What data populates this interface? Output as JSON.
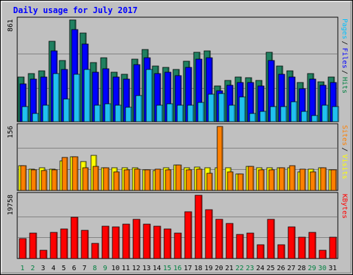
{
  "chart_data": {
    "type": "bar",
    "title": "Daily usage for July 2017",
    "categories": [
      "1",
      "2",
      "3",
      "4",
      "5",
      "6",
      "7",
      "8",
      "9",
      "10",
      "11",
      "12",
      "13",
      "14",
      "15",
      "16",
      "17",
      "18",
      "19",
      "20",
      "21",
      "22",
      "23",
      "24",
      "25",
      "26",
      "27",
      "28",
      "29",
      "30",
      "31"
    ],
    "weekend_days": [
      "1",
      "2",
      "8",
      "9",
      "15",
      "16",
      "22",
      "23",
      "29",
      "30"
    ],
    "panels": [
      {
        "id": "pages-files-hits",
        "max_label": "861",
        "ymax": 861,
        "legend": [
          "Pages",
          "Files",
          "Hits"
        ],
        "legend_colors": [
          "#00c0ff",
          "#0000ff",
          "#008040"
        ],
        "series": [
          {
            "name": "Hits",
            "color": "#208060",
            "values": [
              380,
              410,
              430,
              680,
              520,
              861,
              750,
              500,
              540,
              420,
              400,
              530,
              610,
              470,
              460,
              440,
              510,
              590,
              600,
              300,
              350,
              380,
              370,
              350,
              590,
              470,
              430,
              330,
              410,
              340,
              380
            ]
          },
          {
            "name": "Files",
            "color": "#0000ff",
            "values": [
              320,
              360,
              380,
              600,
              440,
              780,
              660,
              420,
              450,
              380,
              360,
              480,
              540,
              410,
              420,
              390,
              460,
              530,
              540,
              260,
              310,
              330,
              330,
              300,
              520,
              400,
              380,
              280,
              360,
              310,
              330
            ]
          },
          {
            "name": "Pages",
            "color": "#20c0f0",
            "values": [
              130,
              70,
              140,
              410,
              190,
              400,
              440,
              140,
              150,
              140,
              120,
              220,
              440,
              140,
              150,
              140,
              140,
              160,
              230,
              240,
              140,
              210,
              70,
              90,
              130,
              130,
              170,
              90,
              50,
              140,
              130
            ]
          }
        ]
      },
      {
        "id": "sites-visits",
        "max_label": "156",
        "ymax": 156,
        "legend": [
          "Sites",
          "Visits"
        ],
        "legend_colors": [
          "#ff8000",
          "#ffff00"
        ],
        "series": [
          {
            "name": "Visits",
            "color": "#ffff00",
            "values": [
              60,
              52,
              55,
              52,
              72,
              82,
              70,
              85,
              55,
              55,
              55,
              55,
              50,
              48,
              55,
              62,
              55,
              57,
              55,
              55,
              55,
              40,
              58,
              55,
              55,
              55,
              55,
              45,
              52,
              55,
              50
            ]
          },
          {
            "name": "Sites",
            "color": "#ff8000",
            "values": [
              60,
              50,
              48,
              50,
              80,
              82,
              55,
              58,
              55,
              45,
              50,
              52,
              50,
              52,
              50,
              62,
              50,
              52,
              42,
              156,
              45,
              40,
              58,
              50,
              50,
              55,
              60,
              52,
              45,
              55,
              50
            ]
          }
        ]
      },
      {
        "id": "kbytes",
        "max_label": "19758",
        "ymax": 19758,
        "legend": [
          "KBytes"
        ],
        "legend_colors": [
          "#ff0000"
        ],
        "series": [
          {
            "name": "KBytes",
            "color": "#ff0000",
            "values": [
              6200,
              8000,
              2600,
              8100,
              9200,
              12800,
              8800,
              4800,
              10000,
              9900,
              10800,
              12300,
              10800,
              10000,
              9200,
              7900,
              14700,
              19758,
              15200,
              12300,
              11000,
              7600,
              7900,
              4400,
              12300,
              4200,
              9900,
              6700,
              8100,
              2600,
              6700
            ]
          }
        ]
      }
    ]
  }
}
